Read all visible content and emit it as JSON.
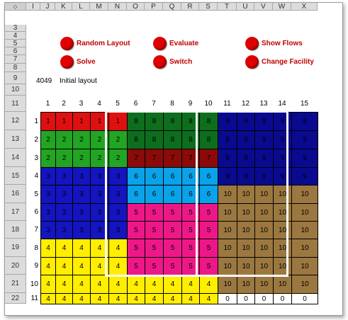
{
  "sheet": {
    "corner_icon": "select-all-diamond",
    "columns": [
      "I",
      "J",
      "K",
      "L",
      "M",
      "N",
      "O",
      "P",
      "Q",
      "R",
      "S",
      "T",
      "U",
      "V",
      "W",
      "X"
    ],
    "rows": [
      "3",
      "4",
      "5",
      "6",
      "7",
      "8",
      "9",
      "10",
      "11",
      "12",
      "13",
      "14",
      "15",
      "16",
      "17",
      "18",
      "19",
      "20",
      "21",
      "22"
    ]
  },
  "buttons": {
    "random_layout": "Random Layout",
    "evaluate": "Evaluate",
    "show_flows": "Show Flows",
    "solve": "Solve",
    "switch": "Switch",
    "change_facility": "Change Facility"
  },
  "cost_value": "4049",
  "layout_title": "Initial layout",
  "layout": {
    "col_numbers": [
      "1",
      "2",
      "3",
      "4",
      "5",
      "6",
      "7",
      "8",
      "9",
      "10",
      "11",
      "12",
      "13",
      "14",
      "15"
    ],
    "row_numbers": [
      "1",
      "2",
      "3",
      "4",
      "5",
      "6",
      "7",
      "8",
      "9",
      "10",
      "11"
    ],
    "colors": {
      "1": "#e01010",
      "2": "#22a522",
      "3": "#1414c0",
      "4": "#ffee00",
      "5": "#ee1788",
      "6": "#0aa2e8",
      "7": "#8b0a0a",
      "8": "#0d6e1e",
      "9": "#0a0a90",
      "10": "#9b7840",
      "0": "#ffffff"
    },
    "grid": [
      [
        "1",
        "1",
        "1",
        "1",
        "1",
        "8",
        "8",
        "8",
        "8",
        "8",
        "9",
        "9",
        "9",
        "9",
        "9"
      ],
      [
        "2",
        "2",
        "2",
        "2",
        "2",
        "8",
        "8",
        "8",
        "8",
        "8",
        "9",
        "9",
        "9",
        "9",
        "9"
      ],
      [
        "2",
        "2",
        "2",
        "2",
        "2",
        "7",
        "7",
        "7",
        "7",
        "7",
        "9",
        "9",
        "9",
        "9",
        "9"
      ],
      [
        "3",
        "3",
        "3",
        "3",
        "3",
        "6",
        "6",
        "6",
        "6",
        "6",
        "9",
        "9",
        "9",
        "9",
        "9"
      ],
      [
        "3",
        "3",
        "3",
        "3",
        "3",
        "6",
        "6",
        "6",
        "6",
        "6",
        "10",
        "10",
        "10",
        "10",
        "10"
      ],
      [
        "3",
        "3",
        "3",
        "3",
        "3",
        "5",
        "5",
        "5",
        "5",
        "5",
        "10",
        "10",
        "10",
        "10",
        "10"
      ],
      [
        "3",
        "3",
        "3",
        "3",
        "3",
        "5",
        "5",
        "5",
        "5",
        "5",
        "10",
        "10",
        "10",
        "10",
        "10"
      ],
      [
        "4",
        "4",
        "4",
        "4",
        "4",
        "5",
        "5",
        "5",
        "5",
        "5",
        "10",
        "10",
        "10",
        "10",
        "10"
      ],
      [
        "4",
        "4",
        "4",
        "4",
        "4",
        "5",
        "5",
        "5",
        "5",
        "5",
        "10",
        "10",
        "10",
        "10",
        "10"
      ],
      [
        "4",
        "4",
        "4",
        "4",
        "4",
        "4",
        "4",
        "4",
        "4",
        "4",
        "10",
        "10",
        "10",
        "10",
        "10"
      ],
      [
        "4",
        "4",
        "4",
        "4",
        "4",
        "4",
        "4",
        "4",
        "4",
        "4",
        "0",
        "0",
        "0",
        "0",
        "0"
      ]
    ]
  }
}
